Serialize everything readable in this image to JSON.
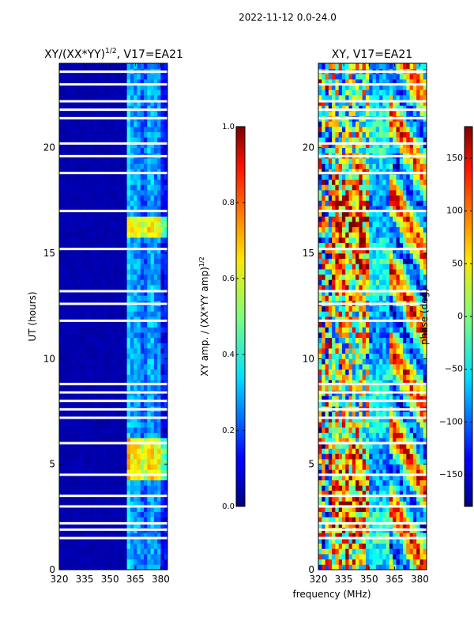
{
  "figure": {
    "suptitle": "2022-11-12 0.0-24.0",
    "xlabel": "frequency (MHz)"
  },
  "chart_data": [
    {
      "type": "heatmap",
      "title_main": "XY/(XX*YY)",
      "title_exp": "1/2",
      "title_suffix": ", V17=EA21",
      "ylabel": "UT (hours)",
      "xlim": [
        320,
        384
      ],
      "ylim": [
        0,
        24
      ],
      "xticks": [
        320,
        335,
        350,
        365,
        380
      ],
      "yticks": [
        0,
        5,
        10,
        15,
        20
      ],
      "colormap": "jet",
      "cbar_label_main": "XY amp. / (XX*YY amp)",
      "cbar_label_exp": "1/2",
      "cbar_range": [
        0.0,
        1.0
      ],
      "cbar_ticks": [
        "0.0",
        "0.2",
        "0.4",
        "0.6",
        "0.8",
        "1.0"
      ],
      "cbar_tick_values": [
        0.0,
        0.2,
        0.4,
        0.6,
        0.8,
        1.0
      ],
      "frequency_bands": [
        {
          "from": 320,
          "to": 360,
          "level": 0.05
        },
        {
          "from": 360,
          "to": 363,
          "level": 0.35
        },
        {
          "from": 363,
          "to": 368,
          "level": 0.28
        },
        {
          "from": 368,
          "to": 373,
          "level": 0.22
        },
        {
          "from": 373,
          "to": 376,
          "level": 0.3
        },
        {
          "from": 376,
          "to": 381,
          "level": 0.26
        },
        {
          "from": 381,
          "to": 384,
          "level": 0.12
        }
      ],
      "bright_periods_ut": [
        [
          4.2,
          6.2
        ],
        [
          15.7,
          16.7
        ]
      ],
      "data_gaps_ut": [
        1.5,
        1.9,
        2.2,
        3.0,
        3.5,
        4.5,
        6.0,
        7.2,
        7.6,
        8.0,
        8.4,
        8.8,
        11.8,
        12.6,
        13.2,
        15.2,
        17.0,
        18.8,
        19.6,
        20.2,
        21.4,
        21.8,
        22.2,
        23.0,
        23.6
      ]
    },
    {
      "type": "heatmap",
      "title": "XY, V17=EA21",
      "xlim": [
        320,
        384
      ],
      "ylim": [
        0,
        24
      ],
      "xticks": [
        320,
        335,
        350,
        365,
        380
      ],
      "yticks": [
        0,
        5,
        10,
        15,
        20
      ],
      "colormap": "jet",
      "cbar_label": "phase (deg)",
      "cbar_range": [
        -180,
        180
      ],
      "cbar_ticks": [
        "150",
        "100",
        "50",
        "0",
        "−50",
        "−100",
        "−150"
      ],
      "cbar_tick_values": [
        150,
        100,
        50,
        0,
        -50,
        -100,
        -150
      ],
      "data_gaps_ut": [
        1.5,
        1.9,
        2.2,
        3.0,
        3.5,
        4.5,
        6.0,
        7.2,
        7.6,
        8.0,
        8.4,
        8.8,
        11.8,
        12.6,
        13.2,
        15.2,
        17.0,
        18.8,
        19.6,
        20.2,
        21.4,
        21.8,
        22.2,
        23.0,
        23.6
      ]
    }
  ]
}
